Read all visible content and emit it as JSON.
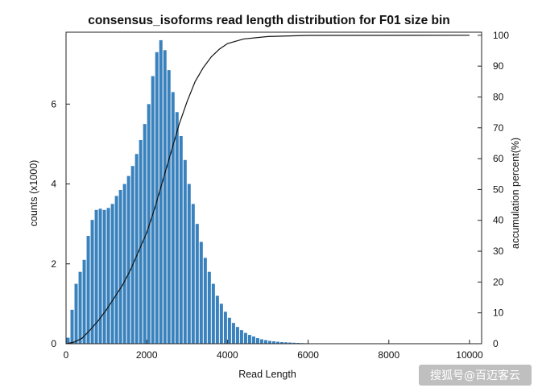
{
  "chart_data": {
    "type": "bar",
    "title": "consensus_isoforms read length distribution for F01 size bin",
    "xlabel": "Read Length",
    "ylabel": "counts (x1000)",
    "y2label": "accumulation percent(%)",
    "xlim": [
      0,
      10300
    ],
    "ylim": [
      0,
      7.8
    ],
    "y2lim": [
      0,
      101
    ],
    "x_ticks": [
      "0",
      "2000",
      "4000",
      "6000",
      "8000",
      "10000"
    ],
    "y_ticks": [
      "0",
      "2",
      "4",
      "6"
    ],
    "y2_ticks": [
      "0",
      "10",
      "20",
      "30",
      "40",
      "50",
      "60",
      "70",
      "80",
      "90",
      "100"
    ],
    "bin_width": 100,
    "bar_color": "#3a82bd",
    "line_color": "#111111",
    "grid": false,
    "legend": "none",
    "bins": [
      {
        "x": 50,
        "y": 0.15
      },
      {
        "x": 150,
        "y": 0.85
      },
      {
        "x": 250,
        "y": 1.5
      },
      {
        "x": 350,
        "y": 1.8
      },
      {
        "x": 450,
        "y": 2.1
      },
      {
        "x": 550,
        "y": 2.7
      },
      {
        "x": 650,
        "y": 3.1
      },
      {
        "x": 750,
        "y": 3.35
      },
      {
        "x": 850,
        "y": 3.38
      },
      {
        "x": 950,
        "y": 3.35
      },
      {
        "x": 1050,
        "y": 3.4
      },
      {
        "x": 1150,
        "y": 3.5
      },
      {
        "x": 1250,
        "y": 3.7
      },
      {
        "x": 1350,
        "y": 3.85
      },
      {
        "x": 1450,
        "y": 4.0
      },
      {
        "x": 1550,
        "y": 4.2
      },
      {
        "x": 1650,
        "y": 4.45
      },
      {
        "x": 1750,
        "y": 4.75
      },
      {
        "x": 1850,
        "y": 5.1
      },
      {
        "x": 1950,
        "y": 5.5
      },
      {
        "x": 2050,
        "y": 6.0
      },
      {
        "x": 2150,
        "y": 6.7
      },
      {
        "x": 2250,
        "y": 7.3
      },
      {
        "x": 2350,
        "y": 7.6
      },
      {
        "x": 2450,
        "y": 7.35
      },
      {
        "x": 2550,
        "y": 6.85
      },
      {
        "x": 2650,
        "y": 6.3
      },
      {
        "x": 2750,
        "y": 5.8
      },
      {
        "x": 2850,
        "y": 5.2
      },
      {
        "x": 2950,
        "y": 4.6
      },
      {
        "x": 3050,
        "y": 4.0
      },
      {
        "x": 3150,
        "y": 3.5
      },
      {
        "x": 3250,
        "y": 3.0
      },
      {
        "x": 3350,
        "y": 2.55
      },
      {
        "x": 3450,
        "y": 2.15
      },
      {
        "x": 3550,
        "y": 1.8
      },
      {
        "x": 3650,
        "y": 1.5
      },
      {
        "x": 3750,
        "y": 1.2
      },
      {
        "x": 3850,
        "y": 1.0
      },
      {
        "x": 3950,
        "y": 0.8
      },
      {
        "x": 4050,
        "y": 0.65
      },
      {
        "x": 4150,
        "y": 0.52
      },
      {
        "x": 4250,
        "y": 0.42
      },
      {
        "x": 4350,
        "y": 0.34
      },
      {
        "x": 4450,
        "y": 0.27
      },
      {
        "x": 4550,
        "y": 0.22
      },
      {
        "x": 4650,
        "y": 0.18
      },
      {
        "x": 4750,
        "y": 0.14
      },
      {
        "x": 4850,
        "y": 0.11
      },
      {
        "x": 4950,
        "y": 0.09
      },
      {
        "x": 5050,
        "y": 0.07
      },
      {
        "x": 5150,
        "y": 0.06
      },
      {
        "x": 5250,
        "y": 0.05
      },
      {
        "x": 5350,
        "y": 0.04
      },
      {
        "x": 5450,
        "y": 0.035
      },
      {
        "x": 5550,
        "y": 0.03
      },
      {
        "x": 5650,
        "y": 0.025
      },
      {
        "x": 5750,
        "y": 0.02
      },
      {
        "x": 5850,
        "y": 0.015
      },
      {
        "x": 5950,
        "y": 0.012
      },
      {
        "x": 6050,
        "y": 0.01
      },
      {
        "x": 6150,
        "y": 0.008
      },
      {
        "x": 6250,
        "y": 0.006
      },
      {
        "x": 6350,
        "y": 0.005
      },
      {
        "x": 6450,
        "y": 0.004
      },
      {
        "x": 6550,
        "y": 0.003
      },
      {
        "x": 6650,
        "y": 0.002
      },
      {
        "x": 6750,
        "y": 0.002
      }
    ],
    "cumulative": [
      {
        "x": 0,
        "y": 0
      },
      {
        "x": 200,
        "y": 0.5
      },
      {
        "x": 400,
        "y": 1.8
      },
      {
        "x": 600,
        "y": 4.5
      },
      {
        "x": 800,
        "y": 7.5
      },
      {
        "x": 1000,
        "y": 11
      },
      {
        "x": 1200,
        "y": 15
      },
      {
        "x": 1400,
        "y": 19
      },
      {
        "x": 1600,
        "y": 24
      },
      {
        "x": 1800,
        "y": 30
      },
      {
        "x": 2000,
        "y": 36
      },
      {
        "x": 2200,
        "y": 44
      },
      {
        "x": 2400,
        "y": 53
      },
      {
        "x": 2600,
        "y": 62
      },
      {
        "x": 2800,
        "y": 71
      },
      {
        "x": 3000,
        "y": 78.5
      },
      {
        "x": 3200,
        "y": 85
      },
      {
        "x": 3400,
        "y": 89.5
      },
      {
        "x": 3600,
        "y": 93
      },
      {
        "x": 3800,
        "y": 95.5
      },
      {
        "x": 4000,
        "y": 97.3
      },
      {
        "x": 4400,
        "y": 98.8
      },
      {
        "x": 5000,
        "y": 99.6
      },
      {
        "x": 6000,
        "y": 99.95
      },
      {
        "x": 10000,
        "y": 100
      }
    ]
  },
  "watermark": "搜狐号@百迈客云"
}
